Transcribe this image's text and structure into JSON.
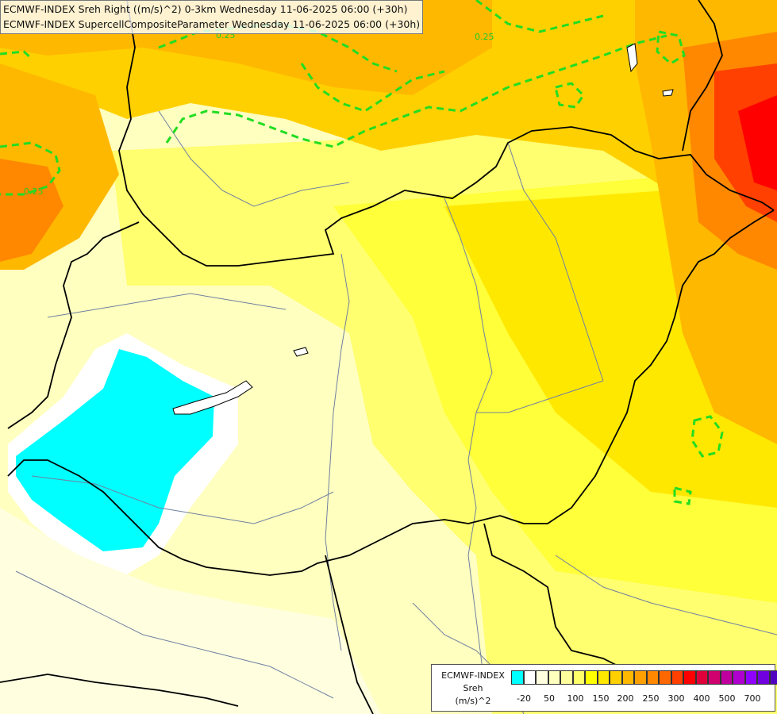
{
  "title_lines": [
    "ECMWF-INDEX Sreh Right ((m/s)^2) 0-3km Wednesday 11-06-2025 06:00 (+30h)",
    "ECMWF-INDEX SupercellCompositeParameter Wednesday 11-06-2025 06:00 (+30h)"
  ],
  "contour_labels": [
    "0.25",
    "0.25",
    "0.25"
  ],
  "legend": {
    "label_lines": [
      "ECMWF-INDEX",
      "Sreh",
      "(m/s)^2"
    ],
    "colors": [
      "#00ffff",
      "#ffffff",
      "#ffffe0",
      "#ffffbe",
      "#ffff9e",
      "#ffff6a",
      "#ffff00",
      "#ffe800",
      "#ffd000",
      "#ffb800",
      "#ffa000",
      "#ff8800",
      "#ff6800",
      "#ff4000",
      "#ff0000",
      "#e0003a",
      "#d0006e",
      "#c0009e",
      "#b000d0",
      "#9000ff",
      "#7000e0",
      "#5000c0",
      "#2000a0",
      "#000080"
    ],
    "tick_labels": [
      "-20",
      "50",
      "100",
      "150",
      "200",
      "250",
      "300",
      "400",
      "500",
      "700"
    ]
  },
  "colors": {
    "cyan": "#00ffff",
    "pale_yellow": "#ffffc0",
    "yellow": "#ffff00",
    "orange": "#ffb800",
    "red": "#ff2020",
    "border": "#000000",
    "rivers": "#7080a0",
    "scp_contour": "#22dd22"
  }
}
